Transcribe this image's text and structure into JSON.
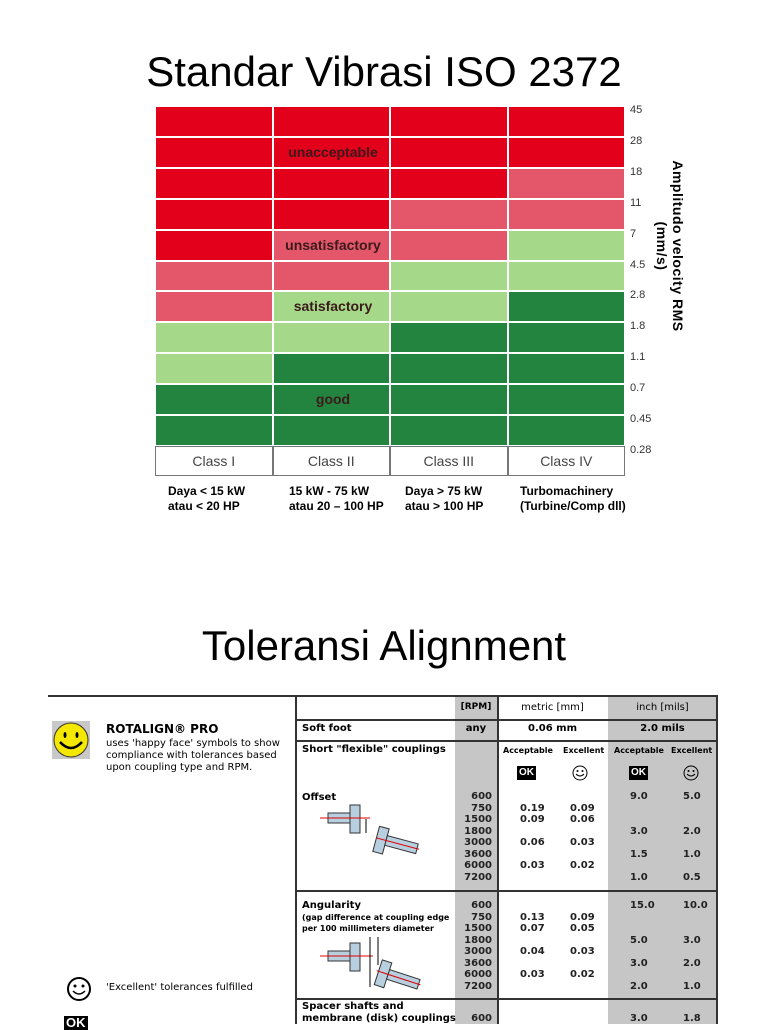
{
  "slide1": {
    "title": "Standar Vibrasi ISO 2372",
    "chart_data": {
      "type": "heatmap",
      "ylabel": "Amplitudo velocity RMS (mm/s)",
      "y_ticks": [
        "45",
        "28",
        "18",
        "11",
        "7",
        "4.5",
        "2.8",
        "1.8",
        "1.1",
        "0.7",
        "0.45",
        "0.28"
      ],
      "categories": [
        "Class I",
        "Class II",
        "Class III",
        "Class IV"
      ],
      "category_descriptions": [
        [
          "Daya < 15 kW",
          "atau < 20 HP"
        ],
        [
          "15 kW - 75 kW",
          "atau 20 – 100 HP"
        ],
        [
          "Daya > 75 kW",
          "atau > 100 HP"
        ],
        [
          "Turbomachinery",
          "(Turbine/Comp dll)"
        ]
      ],
      "zones": {
        "unacceptable": {
          "label": "unacceptable",
          "color": "#e3001b"
        },
        "unsatisfactory": {
          "label": "unsatisfactory",
          "color": "#e4566a"
        },
        "satisfactory": {
          "label": "satisfactory",
          "color": "#a6d88a"
        },
        "good": {
          "label": "good",
          "color": "#23843f"
        }
      },
      "zone_upper_limits_mm_s": {
        "Class I": {
          "good": 0.7,
          "satisfactory": 1.8,
          "unsatisfactory": 4.5,
          "unacceptable": 45
        },
        "Class II": {
          "good": 1.1,
          "satisfactory": 2.8,
          "unsatisfactory": 7,
          "unacceptable": 45
        },
        "Class III": {
          "good": 1.8,
          "satisfactory": 4.5,
          "unsatisfactory": 11,
          "unacceptable": 45
        },
        "Class IV": {
          "good": 2.8,
          "satisfactory": 7,
          "unsatisfactory": 18,
          "unacceptable": 45
        }
      }
    }
  },
  "slide2": {
    "title": "Toleransi Alignment",
    "intro": {
      "brand": "ROTALIGN® PRO",
      "text": [
        "uses 'happy face' symbols to show",
        "compliance with tolerances based",
        "upon coupling type and RPM."
      ],
      "excellent_legend": "'Excellent' tolerances fulfilled",
      "ok_icon": "OK"
    },
    "table": {
      "headers": {
        "rpm": "[RPM]",
        "metric": "metric [mm]",
        "inch": "inch [mils]"
      },
      "soft_foot": {
        "label": "Soft foot",
        "rpm": "any",
        "metric": "0.06 mm",
        "inch": "2.0 mils"
      },
      "short_flexible": {
        "label": "Short \"flexible\" couplings",
        "sub_headers": [
          "Acceptable",
          "Excellent",
          "Acceptable",
          "Excellent"
        ],
        "ok_label": "OK"
      },
      "offset": {
        "label": "Offset",
        "rpm": [
          "600",
          "750",
          "1500",
          "1800",
          "3000",
          "3600",
          "6000",
          "7200"
        ],
        "metric_acceptable": [
          "",
          "0.19",
          "0.09",
          "",
          "0.06",
          "",
          "0.03",
          ""
        ],
        "metric_excellent": [
          "",
          "0.09",
          "0.06",
          "",
          "0.03",
          "",
          "0.02",
          ""
        ],
        "inch_acceptable": [
          "9.0",
          "",
          "",
          "3.0",
          "",
          "1.5",
          "",
          "1.0"
        ],
        "inch_excellent": [
          "5.0",
          "",
          "",
          "2.0",
          "",
          "1.0",
          "",
          "0.5"
        ]
      },
      "angularity": {
        "label": "Angularity",
        "note": [
          "(gap difference at coupling edge",
          "per 100 millimeters diameter"
        ],
        "rpm": [
          "600",
          "750",
          "1500",
          "1800",
          "3000",
          "3600",
          "6000",
          "7200"
        ],
        "metric_acceptable": [
          "",
          "0.13",
          "0.07",
          "",
          "0.04",
          "",
          "0.03",
          ""
        ],
        "metric_excellent": [
          "",
          "0.09",
          "0.05",
          "",
          "0.03",
          "",
          "0.02",
          ""
        ],
        "inch_acceptable": [
          "15.0",
          "",
          "",
          "5.0",
          "",
          "3.0",
          "",
          "2.0"
        ],
        "inch_excellent": [
          "10.0",
          "",
          "",
          "3.0",
          "",
          "2.0",
          "",
          "1.0"
        ]
      },
      "spacer": {
        "label": [
          "Spacer shafts and",
          "membrane (disk) couplings"
        ],
        "rpm": "600",
        "inch_acceptable": "3.0",
        "inch_excellent": "1.8"
      }
    }
  }
}
